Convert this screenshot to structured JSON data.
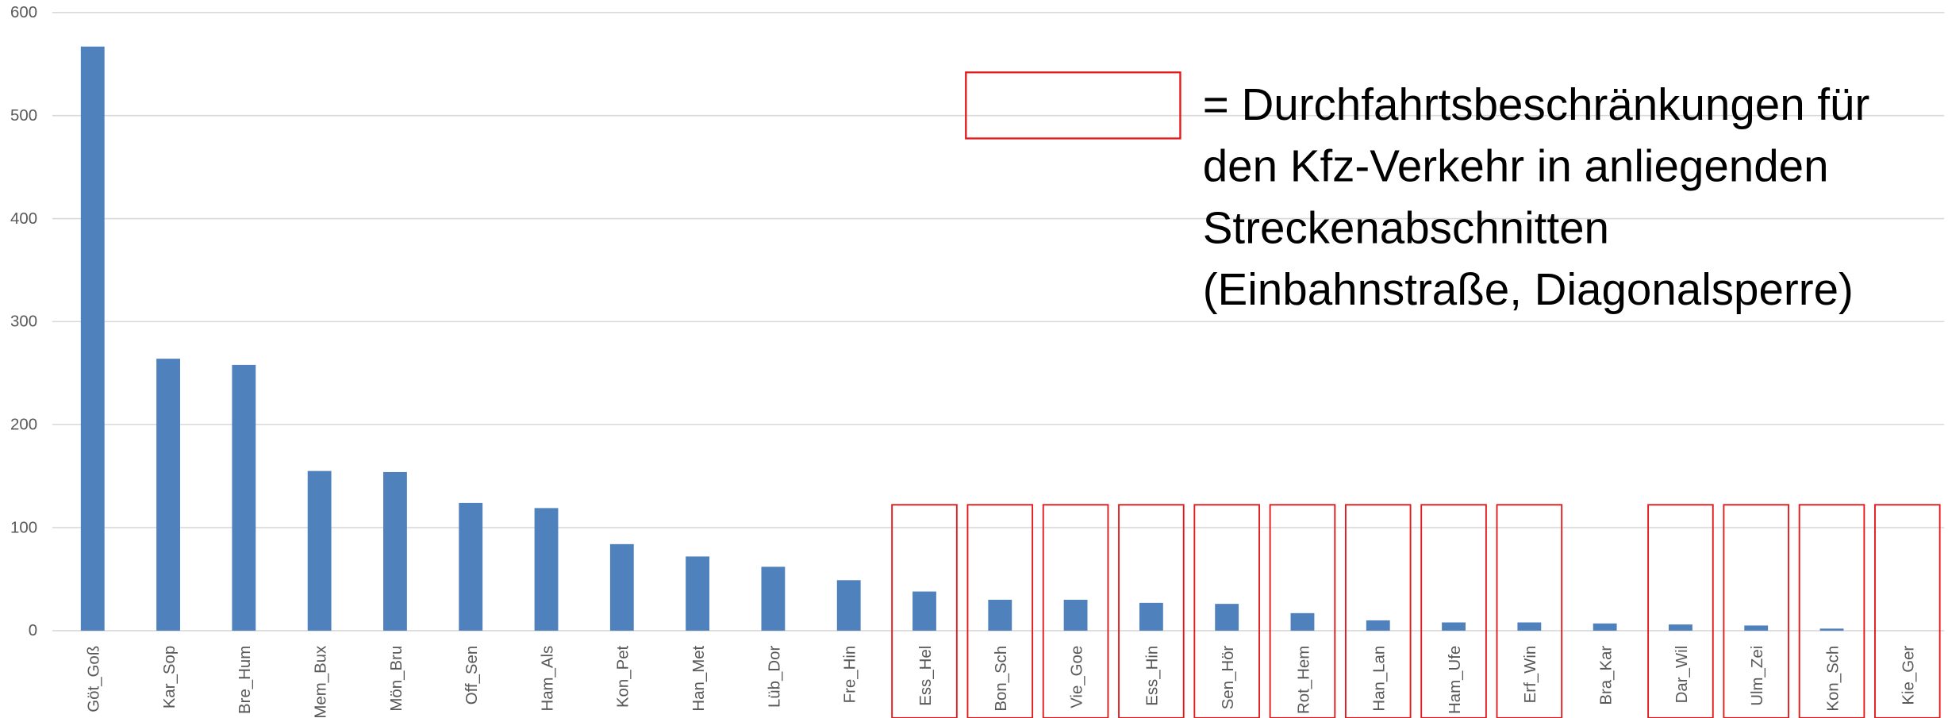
{
  "chart_data": {
    "type": "bar",
    "categories": [
      "Göt_Goß",
      "Kar_Sop",
      "Bre_Hum",
      "Mem_Bux",
      "Mön_Bru",
      "Off_Sen",
      "Ham_Als",
      "Kon_Pet",
      "Han_Met",
      "Lüb_Dor",
      "Fre_Hin",
      "Ess_Hel",
      "Bon_Sch",
      "Vie_Goe",
      "Ess_Hin",
      "Sen_Hör",
      "Rot_Hem",
      "Han_Lan",
      "Ham_Ufe",
      "Erf_Win",
      "Bra_Kar",
      "Dar_Wil",
      "Ulm_Zei",
      "Kon_Sch",
      "Kie_Ger"
    ],
    "values": [
      567,
      264,
      258,
      155,
      154,
      124,
      119,
      84,
      72,
      62,
      49,
      38,
      30,
      30,
      27,
      26,
      17,
      10,
      8,
      8,
      7,
      6,
      5,
      2,
      0
    ],
    "highlighted": [
      false,
      false,
      false,
      false,
      false,
      false,
      false,
      false,
      false,
      false,
      false,
      true,
      true,
      true,
      true,
      true,
      true,
      true,
      true,
      true,
      false,
      true,
      true,
      true,
      true
    ],
    "color": "#4f81bd",
    "highlight_color": "#e31a1c",
    "ylim": [
      0,
      600
    ],
    "yticks": [
      0,
      100,
      200,
      300,
      400,
      500,
      600
    ],
    "grid": true,
    "annotation": [
      "= Durchfahrtsbeschränkungen für",
      "den Kfz-Verkehr in anliegenden",
      "Streckenabschnitten",
      "(Einbahnstraße, Diagonalsperre)"
    ]
  }
}
